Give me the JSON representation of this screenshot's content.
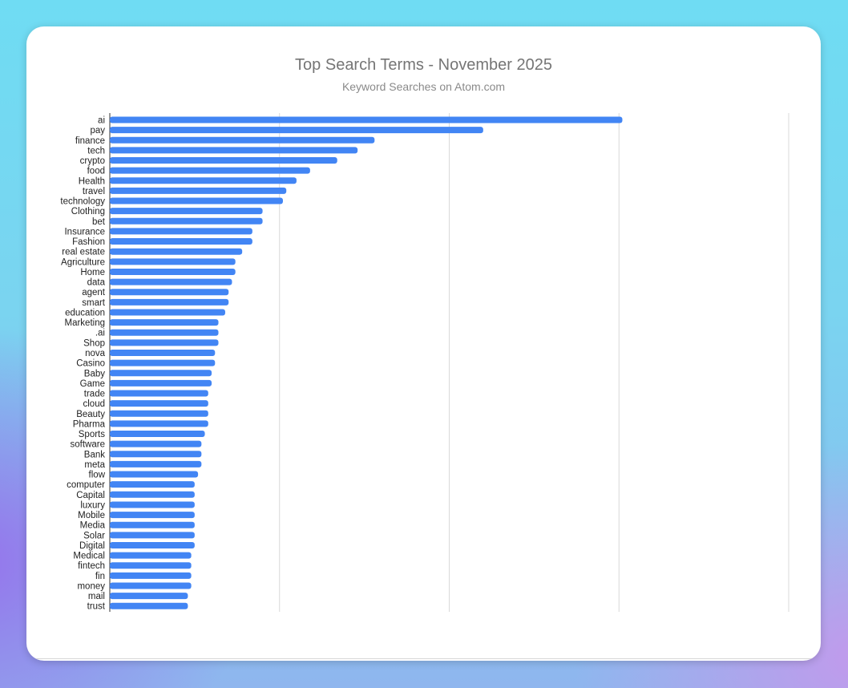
{
  "chart_data": {
    "type": "bar",
    "orientation": "horizontal",
    "title": "Top Search Terms - November 2025",
    "subtitle": "Keyword Searches on Atom.com",
    "xlabel": "",
    "ylabel": "",
    "xlim": [
      0,
      200
    ],
    "grid": true,
    "color": "#4285f4",
    "categories": [
      "ai",
      "pay",
      "finance",
      "tech",
      "crypto",
      "food",
      "Health",
      "travel",
      "technology",
      "Clothing",
      "bet",
      "Insurance",
      "Fashion",
      "real estate",
      "Agriculture",
      "Home",
      "data",
      "agent",
      "smart",
      "education",
      "Marketing",
      ".ai",
      "Shop",
      "nova",
      "Casino",
      "Baby",
      "Game",
      "trade",
      "cloud",
      "Beauty",
      "Pharma",
      "Sports",
      "software",
      "Bank",
      "meta",
      "flow",
      "computer",
      "Capital",
      "luxury",
      "Mobile",
      "Media",
      "Solar",
      "Digital",
      "Medical",
      "fintech",
      "fin",
      "money",
      "mail",
      "trust"
    ],
    "values": [
      151,
      110,
      78,
      73,
      67,
      59,
      55,
      52,
      51,
      45,
      45,
      42,
      42,
      39,
      37,
      37,
      36,
      35,
      35,
      34,
      32,
      32,
      32,
      31,
      31,
      30,
      30,
      29,
      29,
      29,
      29,
      28,
      27,
      27,
      27,
      26,
      25,
      25,
      25,
      25,
      25,
      25,
      25,
      24,
      24,
      24,
      24,
      23,
      23
    ]
  }
}
